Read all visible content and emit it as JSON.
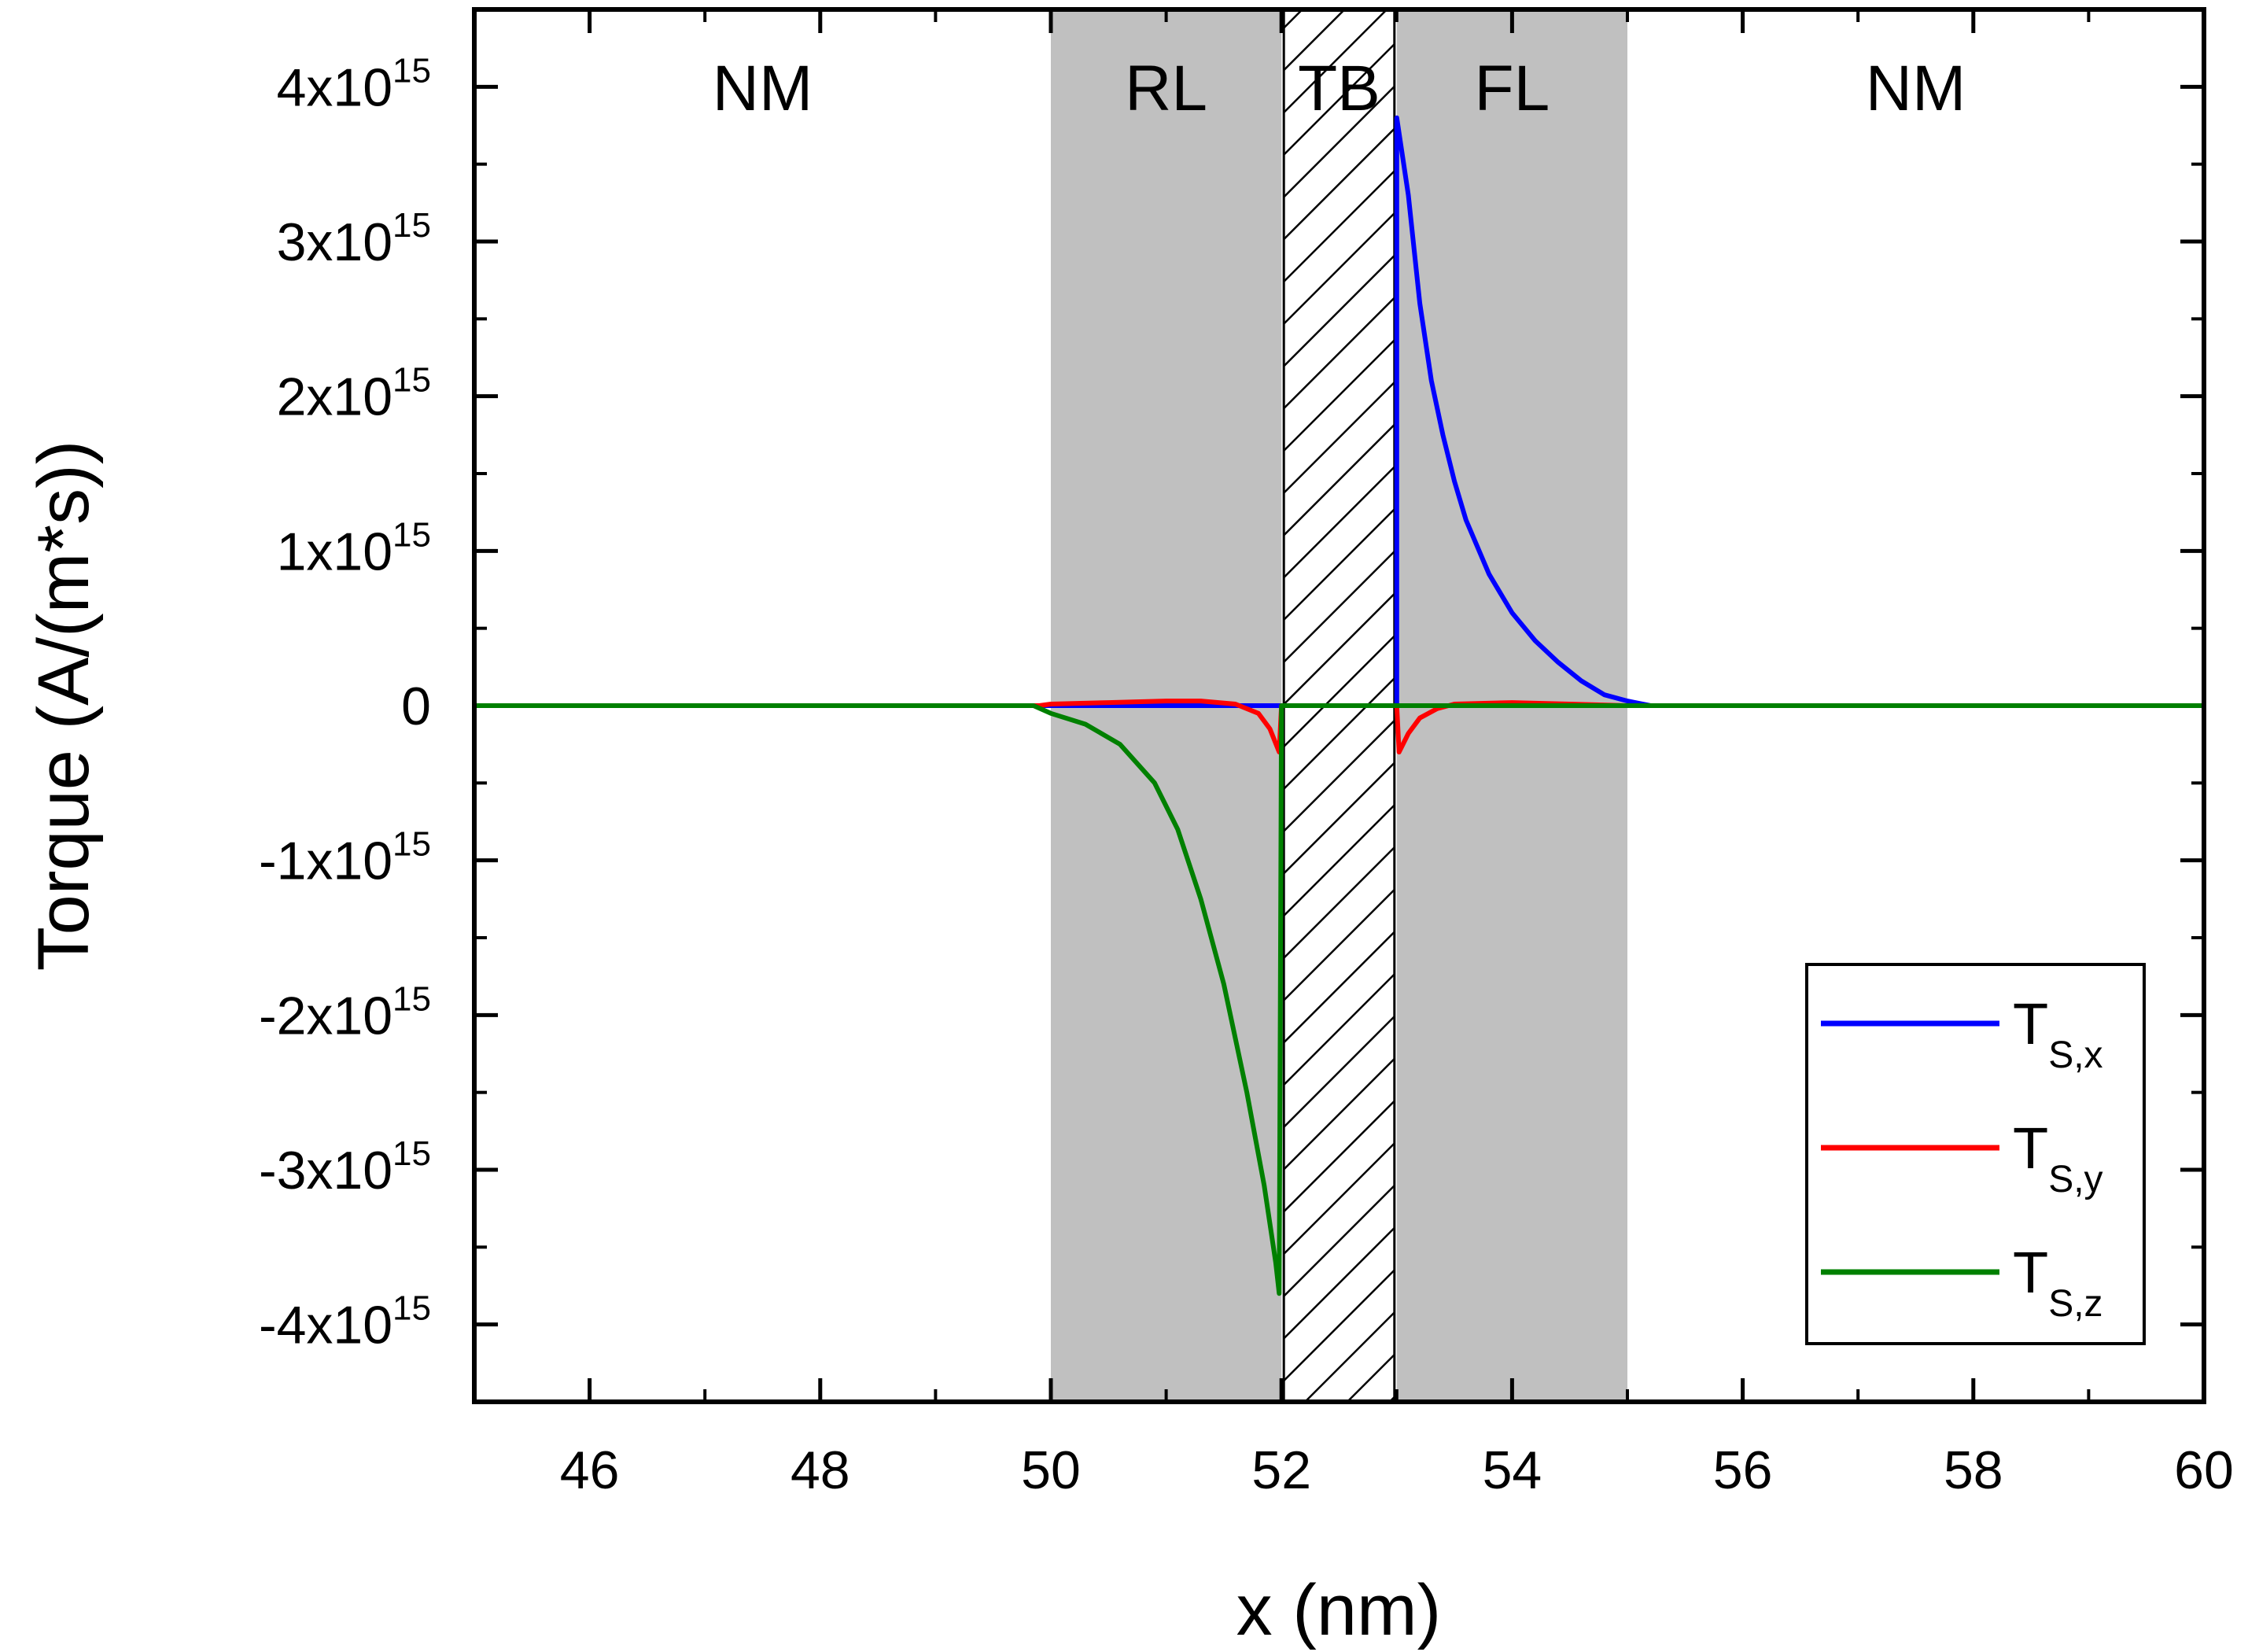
{
  "chart_data": {
    "type": "line",
    "title": "",
    "xlabel": "x (nm)",
    "ylabel": "Torque (A/(m*s))",
    "xlim": [
      45,
      60
    ],
    "ylim": [
      -4500000000000000.0,
      4500000000000000.0
    ],
    "x_ticks": [
      46,
      48,
      50,
      52,
      54,
      56,
      58,
      60
    ],
    "y_ticks": [
      {
        "value": 4000000000000000.0,
        "mantissa": "4x10",
        "exp": "15"
      },
      {
        "value": 3000000000000000.0,
        "mantissa": "3x10",
        "exp": "15"
      },
      {
        "value": 2000000000000000.0,
        "mantissa": "2x10",
        "exp": "15"
      },
      {
        "value": 1000000000000000.0,
        "mantissa": "1x10",
        "exp": "15"
      },
      {
        "value": 0,
        "mantissa": "0",
        "exp": ""
      },
      {
        "value": -1000000000000000.0,
        "mantissa": "-1x10",
        "exp": "15"
      },
      {
        "value": -2000000000000000.0,
        "mantissa": "-2x10",
        "exp": "15"
      },
      {
        "value": -3000000000000000.0,
        "mantissa": "-3x10",
        "exp": "15"
      },
      {
        "value": -4000000000000000.0,
        "mantissa": "-4x10",
        "exp": "15"
      }
    ],
    "regions": [
      {
        "label": "NM",
        "x0": 45,
        "x1": 50,
        "fill": "none"
      },
      {
        "label": "RL",
        "x0": 50,
        "x1": 52,
        "fill": "gray"
      },
      {
        "label": "TB",
        "x0": 52,
        "x1": 53,
        "fill": "hatched"
      },
      {
        "label": "FL",
        "x0": 53,
        "x1": 55,
        "fill": "gray"
      },
      {
        "label": "NM",
        "x0": 55,
        "x1": 60,
        "fill": "none"
      }
    ],
    "legend_position": "bottom-right",
    "series": [
      {
        "name": "T",
        "subscript": "S,x",
        "color": "#0000ff",
        "points": [
          [
            45,
            0
          ],
          [
            53,
            0
          ],
          [
            53.0,
            3800000000000000.0
          ],
          [
            53.1,
            3300000000000000.0
          ],
          [
            53.2,
            2600000000000000.0
          ],
          [
            53.3,
            2100000000000000.0
          ],
          [
            53.4,
            1750000000000000.0
          ],
          [
            53.5,
            1450000000000000.0
          ],
          [
            53.6,
            1200000000000000.0
          ],
          [
            53.8,
            850000000000000.0
          ],
          [
            54.0,
            600000000000000.0
          ],
          [
            54.2,
            420000000000000.0
          ],
          [
            54.4,
            280000000000000.0
          ],
          [
            54.6,
            160000000000000.0
          ],
          [
            54.8,
            70000000000000.0
          ],
          [
            55.0,
            30000000000000.0
          ],
          [
            55.2,
            0
          ],
          [
            60,
            0
          ]
        ]
      },
      {
        "name": "T",
        "subscript": "S,y",
        "color": "#ff0000",
        "points": [
          [
            45,
            0
          ],
          [
            49.9,
            0
          ],
          [
            50.0,
            10000000000000.0
          ],
          [
            50.5,
            20000000000000.0
          ],
          [
            51.0,
            30000000000000.0
          ],
          [
            51.3,
            30000000000000.0
          ],
          [
            51.6,
            10000000000000.0
          ],
          [
            51.8,
            -50000000000000.0
          ],
          [
            51.9,
            -150000000000000.0
          ],
          [
            51.98,
            -300000000000000.0
          ],
          [
            52.0,
            0
          ],
          [
            53.0,
            0
          ],
          [
            53.02,
            -300000000000000.0
          ],
          [
            53.1,
            -180000000000000.0
          ],
          [
            53.2,
            -80000000000000.0
          ],
          [
            53.35,
            -20000000000000.0
          ],
          [
            53.5,
            10000000000000.0
          ],
          [
            54.0,
            20000000000000.0
          ],
          [
            54.5,
            10000000000000.0
          ],
          [
            55.0,
            0
          ],
          [
            60,
            0
          ]
        ]
      },
      {
        "name": "T",
        "subscript": "S,z",
        "color": "#008000",
        "points": [
          [
            45,
            0
          ],
          [
            49.85,
            0
          ],
          [
            50.0,
            -50000000000000.0
          ],
          [
            50.3,
            -120000000000000.0
          ],
          [
            50.6,
            -250000000000000.0
          ],
          [
            50.9,
            -500000000000000.0
          ],
          [
            51.1,
            -800000000000000.0
          ],
          [
            51.3,
            -1250000000000000.0
          ],
          [
            51.5,
            -1800000000000000.0
          ],
          [
            51.7,
            -2500000000000000.0
          ],
          [
            51.85,
            -3100000000000000.0
          ],
          [
            51.95,
            -3600000000000000.0
          ],
          [
            51.98,
            -3800000000000000.0
          ],
          [
            52.0,
            0
          ],
          [
            60,
            0
          ]
        ]
      }
    ]
  }
}
